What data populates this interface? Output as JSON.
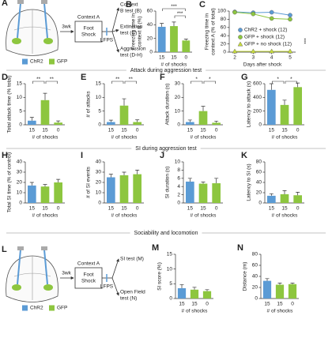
{
  "section_titles": [
    "Attack during aggression test",
    "SI during aggression test",
    "Sociability and locomotion"
  ],
  "schematic_a": {
    "panel": "A",
    "duration": "3wk",
    "context": "Context A",
    "shock": [
      "Foot",
      "Shock"
    ],
    "lfps": "LFPS",
    "tests": [
      [
        "Context",
        "B test (B)"
      ],
      [
        "Extinction",
        "test (C)"
      ],
      [
        "Aggression",
        "test (D-H)"
      ]
    ],
    "legend": [
      {
        "label": "ChR2",
        "color": "#5b9bd5"
      },
      {
        "label": "GFP",
        "color": "#8dc63f"
      }
    ]
  },
  "schematic_l": {
    "panel": "L",
    "duration": "3wk",
    "context": "Context A",
    "shock": [
      "Foot",
      "Shock"
    ],
    "lfps": "LFPS",
    "tests": [
      [
        "SI test (M)"
      ],
      [
        "Open Field",
        "test (N)"
      ]
    ],
    "legend": [
      {
        "label": "ChR2",
        "color": "#5b9bd5"
      },
      {
        "label": "GFP",
        "color": "#8dc63f"
      }
    ]
  },
  "chart_data": [
    {
      "type": "bar",
      "panel": "B",
      "ylabel": [
        "Freezing time in",
        "context B (%)"
      ],
      "xlabel": "# of shocks",
      "categories": [
        "15",
        "15",
        "0"
      ],
      "colors": [
        "#5b9bd5",
        "#8dc63f",
        "#8dc63f"
      ],
      "values": [
        37,
        38,
        17
      ],
      "errors": [
        5,
        6,
        2
      ],
      "ylim": [
        0,
        60
      ],
      "yticks": [
        0,
        20,
        40,
        60
      ],
      "brackets": [
        {
          "label": "***",
          "between": [
            0,
            2
          ]
        },
        {
          "label": "***",
          "between": [
            1,
            2
          ]
        }
      ]
    },
    {
      "type": "line",
      "panel": "C",
      "ylabel": [
        "Freezing time in",
        "context A (% of total)"
      ],
      "xlabel": "Days after shock",
      "x": [
        2,
        3,
        4,
        5
      ],
      "xlim": [
        1.7,
        5.3
      ],
      "xticks": [
        2,
        3,
        4,
        5
      ],
      "ylim": [
        0,
        100
      ],
      "yticks": [
        0,
        20,
        40,
        60,
        80,
        100
      ],
      "series": [
        {
          "name": "ChR2 + shock (12)",
          "color": "#5b9bd5",
          "marker": "circle",
          "values": [
            98,
            96,
            97,
            90
          ]
        },
        {
          "name": "GFP + shock (12)",
          "color": "#8dc63f",
          "marker": "circle",
          "values": [
            97,
            93,
            82,
            80
          ]
        },
        {
          "name": "GFP + no shock (12)",
          "color": "#c8dc3c",
          "marker": "triangle",
          "values": [
            2,
            2,
            2,
            2
          ]
        }
      ],
      "annotation": "***"
    },
    {
      "type": "bar",
      "panel": "D",
      "ylabel": [
        "Total attack time (% total)"
      ],
      "xlabel": "# of shocks",
      "categories": [
        "15",
        "15",
        "0"
      ],
      "colors": [
        "#5b9bd5",
        "#8dc63f",
        "#8dc63f"
      ],
      "values": [
        1.5,
        9,
        0.8
      ],
      "errors": [
        1.2,
        2.5,
        0.6
      ],
      "ylim": [
        0,
        15
      ],
      "yticks": [
        0,
        5,
        10,
        15
      ],
      "brackets": [
        {
          "label": "**",
          "between": [
            0,
            1
          ]
        },
        {
          "label": "**",
          "between": [
            1,
            2
          ]
        }
      ]
    },
    {
      "type": "bar",
      "panel": "E",
      "ylabel": [
        "# of attacks"
      ],
      "xlabel": "# of shocks",
      "categories": [
        "15",
        "15",
        "0"
      ],
      "colors": [
        "#5b9bd5",
        "#8dc63f",
        "#8dc63f"
      ],
      "values": [
        1,
        7,
        1
      ],
      "errors": [
        0.7,
        2.5,
        0.8
      ],
      "ylim": [
        0,
        15
      ],
      "yticks": [
        0,
        5,
        10,
        15
      ],
      "brackets": [
        {
          "label": "**",
          "between": [
            0,
            1
          ]
        },
        {
          "label": "**",
          "between": [
            1,
            2
          ]
        }
      ]
    },
    {
      "type": "bar",
      "panel": "F",
      "ylabel": [
        "Attack duration (s)"
      ],
      "xlabel": "# of shocks",
      "categories": [
        "15",
        "15",
        "0"
      ],
      "colors": [
        "#5b9bd5",
        "#8dc63f",
        "#8dc63f"
      ],
      "values": [
        2,
        10,
        1.5
      ],
      "errors": [
        1.5,
        3.5,
        1.2
      ],
      "ylim": [
        0,
        30
      ],
      "yticks": [
        0,
        10,
        20,
        30
      ],
      "brackets": [
        {
          "label": "*",
          "between": [
            0,
            1
          ]
        },
        {
          "label": "*",
          "between": [
            1,
            2
          ]
        }
      ]
    },
    {
      "type": "bar",
      "panel": "G",
      "ylabel": [
        "Latency to attack (s)"
      ],
      "xlabel": "# of shocks",
      "categories": [
        "15",
        "15",
        "0"
      ],
      "colors": [
        "#5b9bd5",
        "#8dc63f",
        "#8dc63f"
      ],
      "values": [
        510,
        290,
        550
      ],
      "errors": [
        90,
        70,
        60
      ],
      "ylim": [
        0,
        600
      ],
      "yticks": [
        0,
        200,
        400,
        600
      ],
      "brackets": [
        {
          "label": "*",
          "between": [
            0,
            1
          ]
        },
        {
          "label": "*",
          "between": [
            1,
            2
          ]
        }
      ]
    },
    {
      "type": "bar",
      "panel": "H",
      "ylabel": [
        "Total SI time (% of control)"
      ],
      "xlabel": "# of shocks",
      "categories": [
        "15",
        "15",
        "0"
      ],
      "colors": [
        "#5b9bd5",
        "#8dc63f",
        "#8dc63f"
      ],
      "values": [
        17,
        16,
        20
      ],
      "errors": [
        3,
        2,
        3
      ],
      "ylim": [
        0,
        40
      ],
      "yticks": [
        0,
        10,
        20,
        30,
        40
      ],
      "brackets": []
    },
    {
      "type": "bar",
      "panel": "I",
      "ylabel": [
        "# of SI events"
      ],
      "xlabel": "# of shocks",
      "categories": [
        "15",
        "15",
        "0"
      ],
      "colors": [
        "#5b9bd5",
        "#8dc63f",
        "#8dc63f"
      ],
      "values": [
        25,
        27,
        28
      ],
      "errors": [
        3,
        3,
        4
      ],
      "ylim": [
        0,
        40
      ],
      "yticks": [
        0,
        10,
        20,
        30,
        40
      ],
      "brackets": []
    },
    {
      "type": "bar",
      "panel": "J",
      "ylabel": [
        "SI duration (s)"
      ],
      "xlabel": "# of shocks",
      "categories": [
        "15",
        "15",
        "0"
      ],
      "colors": [
        "#5b9bd5",
        "#8dc63f",
        "#8dc63f"
      ],
      "values": [
        5.2,
        4.7,
        4.8
      ],
      "errors": [
        0.8,
        0.4,
        1.2
      ],
      "ylim": [
        0,
        10
      ],
      "yticks": [
        0,
        2,
        4,
        6,
        8,
        10
      ],
      "brackets": []
    },
    {
      "type": "bar",
      "panel": "K",
      "ylabel": [
        "Latency to SI (s)"
      ],
      "xlabel": "# of shocks",
      "categories": [
        "15",
        "15",
        "0"
      ],
      "colors": [
        "#5b9bd5",
        "#8dc63f",
        "#8dc63f"
      ],
      "values": [
        14,
        17,
        15
      ],
      "errors": [
        4,
        7,
        6
      ],
      "ylim": [
        0,
        80
      ],
      "yticks": [
        0,
        20,
        40,
        60,
        80
      ],
      "brackets": []
    },
    {
      "type": "bar",
      "panel": "M",
      "ylabel": [
        "SI score (%)"
      ],
      "xlabel": "# of shocks",
      "categories": [
        "15",
        "15",
        "0"
      ],
      "colors": [
        "#5b9bd5",
        "#8dc63f",
        "#8dc63f"
      ],
      "values": [
        3.5,
        3,
        2.5
      ],
      "errors": [
        1.2,
        0.8,
        0.5
      ],
      "ylim": [
        0,
        15
      ],
      "yticks": [
        0,
        5,
        10,
        15
      ],
      "brackets": []
    },
    {
      "type": "bar",
      "panel": "N",
      "ylabel": [
        "Distance (m)"
      ],
      "xlabel": "# of shocks",
      "categories": [
        "15",
        "15",
        "0"
      ],
      "colors": [
        "#5b9bd5",
        "#8dc63f",
        "#8dc63f"
      ],
      "values": [
        32,
        25,
        26
      ],
      "errors": [
        4,
        3,
        2
      ],
      "ylim": [
        0,
        80
      ],
      "yticks": [
        0,
        20,
        40,
        60,
        80
      ],
      "brackets": []
    }
  ]
}
